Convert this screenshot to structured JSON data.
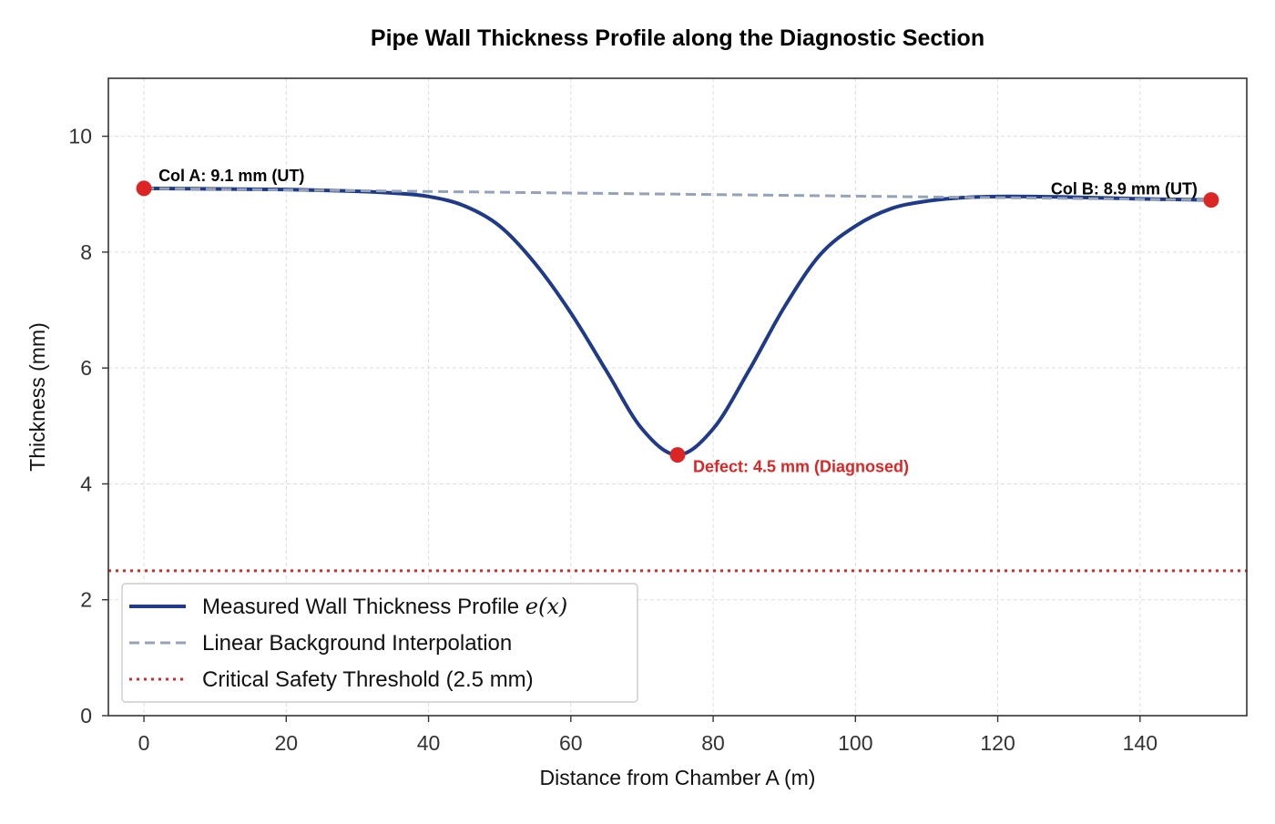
{
  "chart_data": {
    "type": "line",
    "title": "Pipe Wall Thickness Profile along the Diagnostic Section",
    "xlabel": "Distance from Chamber A (m)",
    "ylabel": "Thickness (mm)",
    "xlim": [
      -5,
      155
    ],
    "ylim": [
      0,
      11
    ],
    "xticks": [
      0,
      20,
      40,
      60,
      80,
      100,
      120,
      140
    ],
    "yticks": [
      0,
      2,
      4,
      6,
      8,
      10
    ],
    "grid": true,
    "legend_position": "lower-left",
    "colors": {
      "profile": "#1f3a8a",
      "interpolation": "#94a3b8",
      "threshold": "#dc2626",
      "points": "#dc2626",
      "annotation_black": "#000000",
      "annotation_red": "#dc2626"
    },
    "series": [
      {
        "name": "Measured Wall Thickness Profile e(x)",
        "style": "solid",
        "x": [
          0,
          10,
          20,
          30,
          35,
          40,
          45,
          50,
          55,
          60,
          65,
          70,
          75,
          80,
          85,
          90,
          95,
          100,
          105,
          110,
          115,
          120,
          130,
          140,
          150
        ],
        "y": [
          9.1,
          9.09,
          9.08,
          9.05,
          9.02,
          8.96,
          8.8,
          8.45,
          7.8,
          6.95,
          5.95,
          4.95,
          4.5,
          4.95,
          5.95,
          7.05,
          7.95,
          8.45,
          8.75,
          8.88,
          8.94,
          8.96,
          8.95,
          8.92,
          8.9
        ]
      },
      {
        "name": "Linear Background Interpolation",
        "style": "dashed",
        "x": [
          0,
          150
        ],
        "y": [
          9.1,
          8.9
        ]
      },
      {
        "name": "Critical Safety Threshold (2.5 mm)",
        "style": "dotted",
        "y_constant": 2.5
      }
    ],
    "points": [
      {
        "x": 0,
        "y": 9.1,
        "label": "Col A: 9.1 mm (UT)"
      },
      {
        "x": 75,
        "y": 4.5,
        "label": "Defect: 4.5 mm (Diagnosed)"
      },
      {
        "x": 150,
        "y": 8.9,
        "label": "Col B: 8.9 mm (UT)"
      }
    ],
    "legend": {
      "profile_text": "Measured Wall Thickness Profile ",
      "profile_math": "e(x)",
      "interpolation_text": "Linear Background Interpolation",
      "threshold_text": "Critical Safety Threshold (2.5 mm)"
    }
  }
}
